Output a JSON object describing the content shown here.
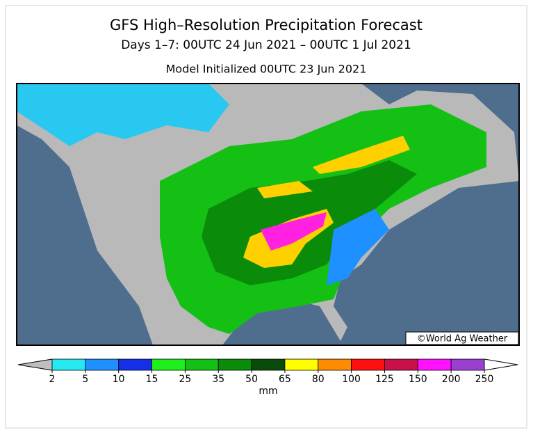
{
  "header": {
    "title": "GFS High–Resolution Precipitation Forecast",
    "subtitle": "Days 1–7: 00UTC 24 Jun 2021 – 00UTC 1 Jul 2021",
    "initialized": "Model Initialized 00UTC 23 Jun 2021"
  },
  "map": {
    "credit": "©World Ag Weather"
  },
  "legend": {
    "ticks": [
      2,
      5,
      10,
      15,
      25,
      35,
      50,
      65,
      80,
      100,
      125,
      150,
      200,
      250
    ],
    "unit": "mm",
    "colors": [
      "#25e8f0",
      "#1e90ff",
      "#1430e6",
      "#1ef01e",
      "#14c014",
      "#0a8c0a",
      "#0a4a0a",
      "#ffff00",
      "#ff8c00",
      "#ff1010",
      "#c8104a",
      "#ff10ff",
      "#9a40d0"
    ],
    "under_color": "#bebebe",
    "over_color": "#ffffff"
  }
}
